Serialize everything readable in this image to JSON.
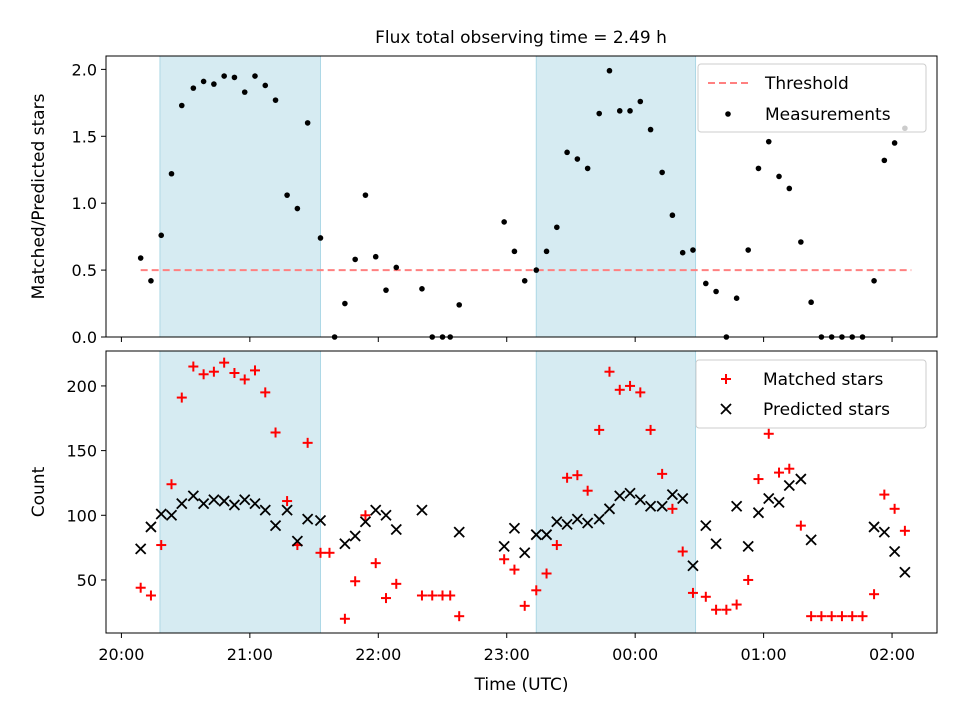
{
  "title": "Flux total observing time = 2.49 h",
  "colors": {
    "shade": "#add8e6",
    "threshold": "#ff8080",
    "measurement": "#000000",
    "matched": "#ff0000",
    "predicted": "#000000"
  },
  "chart_data": [
    {
      "type": "scatter",
      "ylabel": "Matched/Predicted stars",
      "xlabel": "",
      "xlim": [
        -0.12,
        6.35
      ],
      "ylim": [
        0,
        2.1
      ],
      "yticks": [
        "0.0",
        "0.5",
        "1.0",
        "1.5",
        "2.0"
      ],
      "ytick_values": [
        0,
        0.5,
        1.0,
        1.5,
        2.0
      ],
      "grid": false,
      "legend_position": "top-right",
      "shaded_intervals": [
        [
          0.3,
          1.55
        ],
        [
          3.23,
          4.47
        ]
      ],
      "threshold": {
        "name": "Threshold",
        "value": 0.5,
        "x_range": [
          0.15,
          6.15
        ]
      },
      "series": [
        {
          "name": "Measurements",
          "points": [
            [
              0.15,
              0.59
            ],
            [
              0.23,
              0.42
            ],
            [
              0.31,
              0.76
            ],
            [
              0.39,
              1.22
            ],
            [
              0.47,
              1.73
            ],
            [
              0.56,
              1.86
            ],
            [
              0.64,
              1.91
            ],
            [
              0.72,
              1.89
            ],
            [
              0.8,
              1.95
            ],
            [
              0.88,
              1.94
            ],
            [
              0.96,
              1.83
            ],
            [
              1.04,
              1.95
            ],
            [
              1.12,
              1.88
            ],
            [
              1.2,
              1.77
            ],
            [
              1.29,
              1.06
            ],
            [
              1.37,
              0.96
            ],
            [
              1.45,
              1.6
            ],
            [
              1.55,
              0.74
            ],
            [
              1.66,
              0.0
            ],
            [
              1.74,
              0.25
            ],
            [
              1.82,
              0.58
            ],
            [
              1.9,
              1.06
            ],
            [
              1.98,
              0.6
            ],
            [
              2.06,
              0.35
            ],
            [
              2.14,
              0.52
            ],
            [
              2.34,
              0.36
            ],
            [
              2.42,
              0.0
            ],
            [
              2.5,
              0.0
            ],
            [
              2.56,
              0.0
            ],
            [
              2.63,
              0.24
            ],
            [
              2.98,
              0.86
            ],
            [
              3.06,
              0.64
            ],
            [
              3.14,
              0.42
            ],
            [
              3.23,
              0.5
            ],
            [
              3.31,
              0.64
            ],
            [
              3.39,
              0.82
            ],
            [
              3.47,
              1.38
            ],
            [
              3.55,
              1.33
            ],
            [
              3.63,
              1.26
            ],
            [
              3.72,
              1.67
            ],
            [
              3.8,
              1.99
            ],
            [
              3.88,
              1.69
            ],
            [
              3.96,
              1.69
            ],
            [
              4.04,
              1.76
            ],
            [
              4.12,
              1.55
            ],
            [
              4.21,
              1.23
            ],
            [
              4.29,
              0.91
            ],
            [
              4.37,
              0.63
            ],
            [
              4.45,
              0.65
            ],
            [
              4.55,
              0.4
            ],
            [
              4.63,
              0.34
            ],
            [
              4.71,
              0.0
            ],
            [
              4.79,
              0.29
            ],
            [
              4.88,
              0.65
            ],
            [
              4.96,
              1.26
            ],
            [
              5.04,
              1.46
            ],
            [
              5.12,
              1.2
            ],
            [
              5.2,
              1.11
            ],
            [
              5.29,
              0.71
            ],
            [
              5.37,
              0.26
            ],
            [
              5.45,
              0.0
            ],
            [
              5.53,
              0.0
            ],
            [
              5.61,
              0.0
            ],
            [
              5.69,
              0.0
            ],
            [
              5.77,
              0.0
            ],
            [
              5.86,
              0.42
            ],
            [
              5.94,
              1.32
            ],
            [
              6.02,
              1.45
            ],
            [
              6.1,
              1.56
            ]
          ]
        }
      ]
    },
    {
      "type": "scatter",
      "ylabel": "Count",
      "xlabel": "Time (UTC)",
      "xlim": [
        -0.12,
        6.35
      ],
      "ylim": [
        9,
        227
      ],
      "xtick_values": [
        0,
        1,
        2,
        3,
        4,
        5,
        6
      ],
      "xticks": [
        "20:00",
        "21:00",
        "22:00",
        "23:00",
        "00:00",
        "01:00",
        "02:00"
      ],
      "ytick_values": [
        50,
        100,
        150,
        200
      ],
      "yticks": [
        "50",
        "100",
        "150",
        "200"
      ],
      "grid": false,
      "legend_position": "top-right",
      "shaded_intervals": [
        [
          0.3,
          1.55
        ],
        [
          3.23,
          4.47
        ]
      ],
      "series": [
        {
          "name": "Matched stars",
          "marker": "+",
          "points": [
            [
              0.15,
              44
            ],
            [
              0.23,
              38
            ],
            [
              0.31,
              77
            ],
            [
              0.39,
              124
            ],
            [
              0.47,
              191
            ],
            [
              0.56,
              215
            ],
            [
              0.64,
              209
            ],
            [
              0.72,
              211
            ],
            [
              0.8,
              218
            ],
            [
              0.88,
              210
            ],
            [
              0.96,
              205
            ],
            [
              1.04,
              212
            ],
            [
              1.12,
              195
            ],
            [
              1.2,
              164
            ],
            [
              1.29,
              111
            ],
            [
              1.37,
              77
            ],
            [
              1.45,
              156
            ],
            [
              1.55,
              71
            ],
            [
              1.62,
              71
            ],
            [
              1.74,
              20
            ],
            [
              1.82,
              49
            ],
            [
              1.9,
              100
            ],
            [
              1.98,
              63
            ],
            [
              2.06,
              36
            ],
            [
              2.14,
              47
            ],
            [
              2.34,
              38
            ],
            [
              2.42,
              38
            ],
            [
              2.5,
              38
            ],
            [
              2.56,
              38
            ],
            [
              2.63,
              22
            ],
            [
              2.98,
              66
            ],
            [
              3.06,
              58
            ],
            [
              3.14,
              30
            ],
            [
              3.23,
              42
            ],
            [
              3.31,
              55
            ],
            [
              3.39,
              77
            ],
            [
              3.47,
              129
            ],
            [
              3.55,
              131
            ],
            [
              3.63,
              119
            ],
            [
              3.72,
              166
            ],
            [
              3.8,
              211
            ],
            [
              3.88,
              197
            ],
            [
              3.96,
              200
            ],
            [
              4.04,
              195
            ],
            [
              4.12,
              166
            ],
            [
              4.21,
              132
            ],
            [
              4.29,
              105
            ],
            [
              4.37,
              72
            ],
            [
              4.45,
              40
            ],
            [
              4.55,
              37
            ],
            [
              4.63,
              27
            ],
            [
              4.71,
              27
            ],
            [
              4.79,
              31
            ],
            [
              4.88,
              50
            ],
            [
              4.96,
              128
            ],
            [
              5.04,
              163
            ],
            [
              5.12,
              133
            ],
            [
              5.2,
              136
            ],
            [
              5.29,
              92
            ],
            [
              5.37,
              22
            ],
            [
              5.45,
              22
            ],
            [
              5.53,
              22
            ],
            [
              5.61,
              22
            ],
            [
              5.69,
              22
            ],
            [
              5.77,
              22
            ],
            [
              5.86,
              39
            ],
            [
              5.94,
              116
            ],
            [
              6.02,
              105
            ],
            [
              6.1,
              88
            ]
          ]
        },
        {
          "name": "Predicted stars",
          "marker": "x",
          "points": [
            [
              0.15,
              74
            ],
            [
              0.23,
              91
            ],
            [
              0.31,
              101
            ],
            [
              0.39,
              100
            ],
            [
              0.47,
              109
            ],
            [
              0.56,
              115
            ],
            [
              0.64,
              109
            ],
            [
              0.72,
              112
            ],
            [
              0.8,
              111
            ],
            [
              0.88,
              108
            ],
            [
              0.96,
              112
            ],
            [
              1.04,
              109
            ],
            [
              1.12,
              104
            ],
            [
              1.2,
              92
            ],
            [
              1.29,
              104
            ],
            [
              1.37,
              80
            ],
            [
              1.45,
              97
            ],
            [
              1.55,
              96
            ],
            [
              1.74,
              78
            ],
            [
              1.82,
              84
            ],
            [
              1.9,
              95
            ],
            [
              1.98,
              104
            ],
            [
              2.06,
              100
            ],
            [
              2.14,
              89
            ],
            [
              2.34,
              104
            ],
            [
              2.63,
              87
            ],
            [
              2.98,
              76
            ],
            [
              3.06,
              90
            ],
            [
              3.14,
              71
            ],
            [
              3.23,
              85
            ],
            [
              3.31,
              85
            ],
            [
              3.39,
              95
            ],
            [
              3.47,
              93
            ],
            [
              3.55,
              97
            ],
            [
              3.63,
              94
            ],
            [
              3.72,
              97
            ],
            [
              3.8,
              105
            ],
            [
              3.88,
              115
            ],
            [
              3.96,
              117
            ],
            [
              4.04,
              112
            ],
            [
              4.12,
              107
            ],
            [
              4.21,
              107
            ],
            [
              4.29,
              116
            ],
            [
              4.37,
              113
            ],
            [
              4.45,
              61
            ],
            [
              4.55,
              92
            ],
            [
              4.63,
              78
            ],
            [
              4.79,
              107
            ],
            [
              4.88,
              76
            ],
            [
              4.96,
              102
            ],
            [
              5.04,
              113
            ],
            [
              5.12,
              110
            ],
            [
              5.2,
              123
            ],
            [
              5.29,
              128
            ],
            [
              5.37,
              81
            ],
            [
              5.86,
              91
            ],
            [
              5.94,
              87
            ],
            [
              6.02,
              72
            ],
            [
              6.1,
              56
            ]
          ]
        }
      ]
    }
  ]
}
